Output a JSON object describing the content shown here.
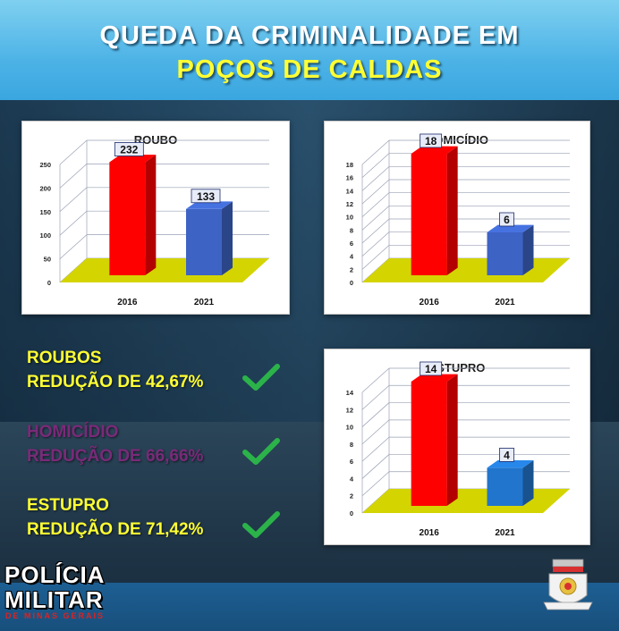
{
  "header": {
    "title_line1": "QUEDA DA CRIMINALIDADE EM",
    "title_line2": "POÇOS DE CALDAS"
  },
  "stats": [
    {
      "label": "ROUBOS",
      "value": "REDUÇÃO DE 42,67%",
      "color": "#ffff33"
    },
    {
      "label": "HOMICÍDIO",
      "value": "REDUÇÃO DE 66,66%",
      "color": "#7a2a78"
    },
    {
      "label": "ESTUPRO",
      "value": "REDUÇÃO DE 71,42%",
      "color": "#ffff33"
    }
  ],
  "colors": {
    "bar_2016": "#ff0000",
    "bar_2021": "#3d63c4",
    "bar_2021_alt": "#2275cc",
    "floor": "#d4d400",
    "check": "#2bb34a"
  },
  "logo": {
    "line1": "POLÍCIA",
    "line2": "MILITAR",
    "line3": "DE MINAS GERAIS"
  },
  "chart_data": [
    {
      "type": "bar",
      "title": "ROUBO",
      "categories": [
        "2016",
        "2021"
      ],
      "values": [
        232,
        133
      ],
      "ylim": [
        0,
        250
      ],
      "yticks": [
        "0",
        "50",
        "100",
        "150",
        "200",
        "250"
      ],
      "grid": true
    },
    {
      "type": "bar",
      "title": "HOMICÍDIO",
      "categories": [
        "2016",
        "2021"
      ],
      "values": [
        18,
        6
      ],
      "ylim": [
        0,
        18
      ],
      "yticks": [
        "0",
        "2",
        "4",
        "6",
        "8",
        "10",
        "12",
        "14",
        "16",
        "18"
      ],
      "grid": true
    },
    {
      "type": "bar",
      "title": "ESTUPRO",
      "categories": [
        "2016",
        "2021"
      ],
      "values": [
        14,
        4
      ],
      "ylim": [
        0,
        14
      ],
      "yticks": [
        "0",
        "2",
        "4",
        "6",
        "8",
        "10",
        "12",
        "14"
      ],
      "grid": true
    }
  ]
}
